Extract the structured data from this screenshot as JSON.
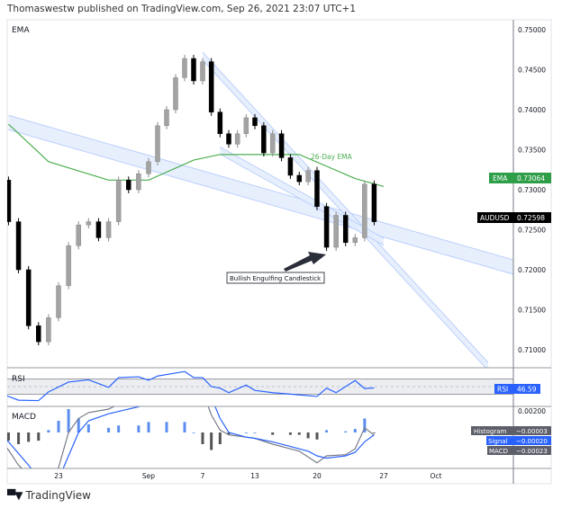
{
  "header": {
    "published": "Thomaswestw published on TradingView.com, Sep 26, 2021 23:07 UTC+1"
  },
  "footer": {
    "brand": "TradingView",
    "logo_icon": "tradingview-logo-icon"
  },
  "colors": {
    "ema": "#4caf50",
    "ema_badge": "#2e9e48",
    "rsi": "#2962ff",
    "signal": "#2962ff",
    "macd": "#787b86",
    "hist_pos": "#5b8def",
    "hist_neg": "#555555",
    "bull_candle": "#a3a3a3",
    "bear_candle": "#000000",
    "channel": "#bcd0fb",
    "price_badge": "#000000"
  },
  "chart_data": [
    {
      "type": "candlestick",
      "symbol": "AUDUSD",
      "legend": "EMA",
      "last_price_label": "AUDUSD",
      "last_price": "0.72598",
      "ema_label": "EMA",
      "ema_value": "0.73064",
      "ylim": [
        0.705,
        0.752
      ],
      "y_ticks": [
        "0.75000",
        "0.74500",
        "0.74000",
        "0.73500",
        "0.73000",
        "0.72500",
        "0.72000",
        "0.71500",
        "0.71000"
      ],
      "closes": [
        [
          "2021-08-17",
          0.7312
        ],
        [
          "2021-08-18",
          0.726
        ],
        [
          "2021-08-19",
          0.72
        ],
        [
          "2021-08-20",
          0.713
        ],
        [
          "2021-08-21",
          0.711
        ],
        [
          "2021-08-22",
          0.714
        ],
        [
          "2021-08-23",
          0.718
        ],
        [
          "2021-08-24",
          0.723
        ],
        [
          "2021-08-25",
          0.7256
        ],
        [
          "2021-08-26",
          0.726
        ],
        [
          "2021-08-27",
          0.724
        ],
        [
          "2021-08-28",
          0.726
        ],
        [
          "2021-08-29",
          0.7312
        ],
        [
          "2021-08-30",
          0.73
        ],
        [
          "2021-08-31",
          0.732
        ],
        [
          "2021-09-01",
          0.7335
        ],
        [
          "2021-09-02",
          0.738
        ],
        [
          "2021-09-03",
          0.74
        ],
        [
          "2021-09-04",
          0.744
        ],
        [
          "2021-09-05",
          0.7464
        ],
        [
          "2021-09-06",
          0.7436
        ],
        [
          "2021-09-07",
          0.746
        ],
        [
          "2021-09-08",
          0.7397
        ],
        [
          "2021-09-09",
          0.737
        ],
        [
          "2021-09-10",
          0.7357
        ],
        [
          "2021-09-11",
          0.737
        ],
        [
          "2021-09-12",
          0.739
        ],
        [
          "2021-09-13",
          0.738
        ],
        [
          "2021-09-14",
          0.7346
        ],
        [
          "2021-09-15",
          0.737
        ],
        [
          "2021-09-16",
          0.734
        ],
        [
          "2021-09-17",
          0.7318
        ],
        [
          "2021-09-18",
          0.731
        ],
        [
          "2021-09-19",
          0.7324
        ],
        [
          "2021-09-20",
          0.7279
        ],
        [
          "2021-09-21",
          0.7228
        ],
        [
          "2021-09-22",
          0.7268
        ],
        [
          "2021-09-23",
          0.7234
        ],
        [
          "2021-09-24",
          0.724
        ],
        [
          "2021-09-25",
          0.7307
        ],
        [
          "2021-09-26",
          0.726
        ]
      ],
      "ema": [
        [
          "2021-08-18",
          0.7382
        ],
        [
          "2021-08-22",
          0.7335
        ],
        [
          "2021-08-28",
          0.7312
        ],
        [
          "2021-09-01",
          0.7312
        ],
        [
          "2021-09-06",
          0.7337
        ],
        [
          "2021-09-09",
          0.7344
        ],
        [
          "2021-09-18",
          0.7344
        ],
        [
          "2021-09-24",
          0.7314
        ],
        [
          "2021-09-27",
          0.7304
        ]
      ],
      "ema_annotation": "26-Day EMA",
      "trendlines": [
        {
          "from": [
            "2021-08-18",
            0.7384
          ],
          "to": [
            "2021-10-07",
            0.7203
          ],
          "band": 0.0018
        },
        {
          "from": [
            "2021-09-07",
            0.7467
          ],
          "to": [
            "2021-10-05",
            0.7079
          ],
          "band": 0.001
        },
        {
          "from": [
            "2021-09-09",
            0.7349
          ],
          "to": [
            "2021-09-27",
            0.7235
          ],
          "band": 0.0009
        }
      ],
      "annotation": {
        "text": "Bullish Engulfing Candlestick",
        "points_to": [
          "2021-09-21",
          0.7228
        ]
      }
    },
    {
      "type": "line",
      "title": "RSI",
      "badge_label": "RSI",
      "last_value": "46.59",
      "bands": [
        30,
        50,
        70
      ],
      "values": [
        [
          "2021-08-17",
          34
        ],
        [
          "2021-08-19",
          14
        ],
        [
          "2021-08-21",
          13
        ],
        [
          "2021-08-22",
          36
        ],
        [
          "2021-08-24",
          62
        ],
        [
          "2021-08-26",
          68
        ],
        [
          "2021-08-28",
          48
        ],
        [
          "2021-08-29",
          74
        ],
        [
          "2021-08-31",
          76
        ],
        [
          "2021-09-01",
          67
        ],
        [
          "2021-09-02",
          78
        ],
        [
          "2021-09-05",
          90
        ],
        [
          "2021-09-06",
          74
        ],
        [
          "2021-09-07",
          74
        ],
        [
          "2021-09-08",
          50
        ],
        [
          "2021-09-09",
          46
        ],
        [
          "2021-09-10",
          34
        ],
        [
          "2021-09-12",
          54
        ],
        [
          "2021-09-13",
          40
        ],
        [
          "2021-09-15",
          34
        ],
        [
          "2021-09-17",
          30
        ],
        [
          "2021-09-20",
          24
        ],
        [
          "2021-09-21",
          46
        ],
        [
          "2021-09-22",
          34
        ],
        [
          "2021-09-24",
          66
        ],
        [
          "2021-09-25",
          45
        ],
        [
          "2021-09-26",
          46.59
        ]
      ]
    },
    {
      "type": "line",
      "title": "MACD",
      "y_ticks": [
        "0.00200"
      ],
      "legend": [
        {
          "name": "Histogram",
          "value": "−0.00003"
        },
        {
          "name": "Signal",
          "value": "−0.00020"
        },
        {
          "name": "MACD",
          "value": "−0.00023"
        }
      ],
      "dates": [
        "2021-08-17",
        "2021-08-18",
        "2021-08-19",
        "2021-08-20",
        "2021-08-21",
        "2021-08-22",
        "2021-08-23",
        "2021-08-24",
        "2021-08-25",
        "2021-08-26",
        "2021-08-28",
        "2021-08-29",
        "2021-08-31",
        "2021-09-01",
        "2021-09-03",
        "2021-09-05",
        "2021-09-06",
        "2021-09-07",
        "2021-09-08",
        "2021-09-09",
        "2021-09-10",
        "2021-09-12",
        "2021-09-13",
        "2021-09-15",
        "2021-09-17",
        "2021-09-18",
        "2021-09-19",
        "2021-09-20",
        "2021-09-21",
        "2021-09-23",
        "2021-09-24",
        "2021-09-25",
        "2021-09-26"
      ],
      "macd": [
        -0.0005,
        -0.0015,
        -0.0028,
        -0.0036,
        -0.0045,
        -0.004,
        -0.003,
        0.0,
        0.0012,
        0.0017,
        0.002,
        0.0024,
        0.0028,
        0.0035,
        0.0045,
        0.0055,
        0.005,
        0.0035,
        0.0015,
        0.0002,
        -0.0002,
        -0.0004,
        -0.0005,
        -0.001,
        -0.0014,
        -0.0016,
        -0.0021,
        -0.0026,
        -0.002,
        -0.0019,
        -0.0014,
        0.0004,
        -0.00023
      ],
      "signal": [
        0.0,
        -0.0008,
        -0.0018,
        -0.0028,
        -0.0038,
        -0.0042,
        -0.004,
        -0.002,
        0.0,
        0.001,
        0.0016,
        0.0018,
        0.0022,
        0.0026,
        0.0036,
        0.0046,
        0.005,
        0.0045,
        0.003,
        0.0012,
        0.0,
        -0.0004,
        -0.0005,
        -0.0008,
        -0.0012,
        -0.0014,
        -0.0016,
        -0.002,
        -0.0022,
        -0.002,
        -0.0017,
        -0.0008,
        -0.0002
      ]
    }
  ],
  "time_axis": {
    "ticks": [
      {
        "label": "23",
        "date": "2021-08-23"
      },
      {
        "label": "Sep",
        "date": "2021-09-01"
      },
      {
        "label": "7",
        "date": "2021-09-07"
      },
      {
        "label": "13",
        "date": "2021-09-13"
      },
      {
        "label": "20",
        "date": "2021-09-20"
      },
      {
        "label": "27",
        "date": "2021-09-27"
      },
      {
        "label": "Oct",
        "date": "2021-10-01"
      }
    ]
  }
}
